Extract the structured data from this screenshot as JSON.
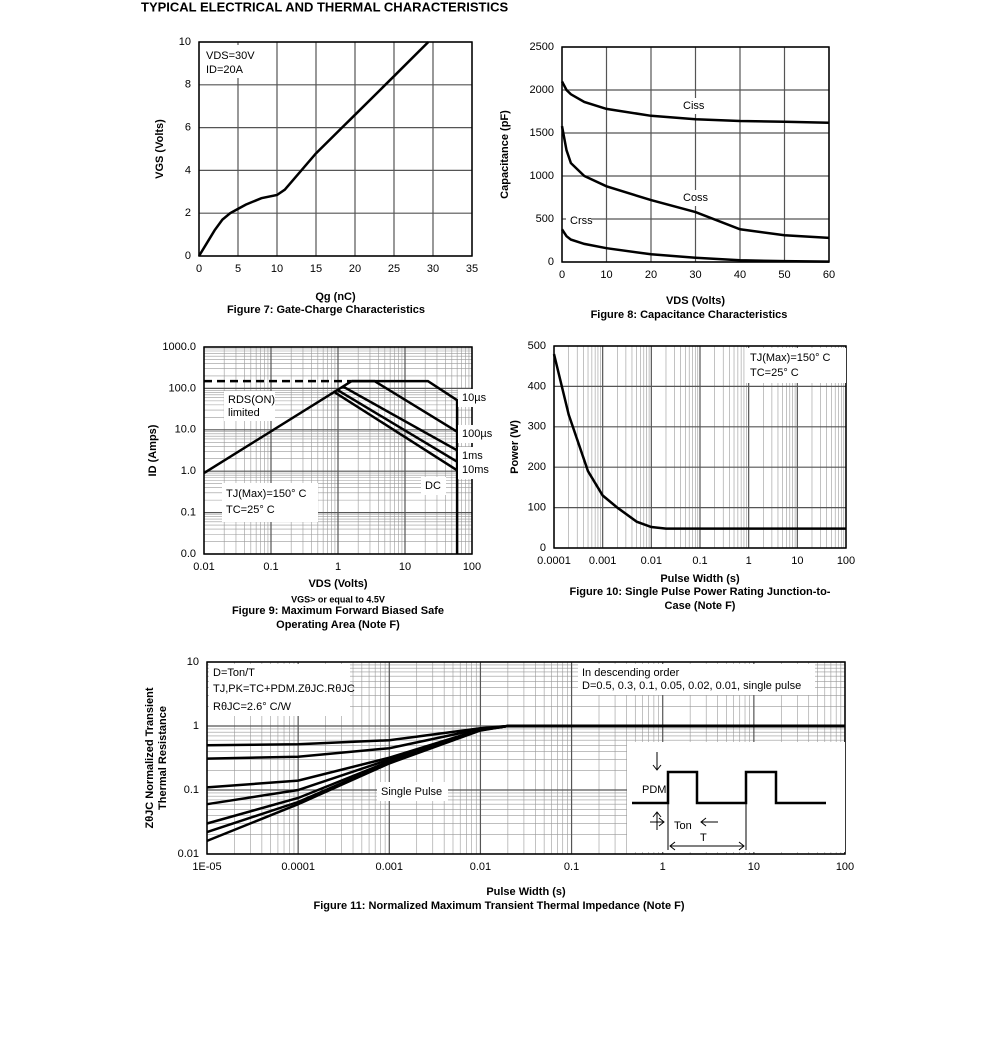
{
  "header": {
    "title": "TYPICAL ELECTRICAL AND THERMAL CHARACTERISTICS"
  },
  "chart_data": [
    {
      "type": "line",
      "caption": [
        "Figure 7: Gate-Charge Characteristics"
      ],
      "x_label": "Qg (nC)",
      "y_label": [
        "VGS (Volts)"
      ],
      "x": [
        0,
        1,
        2,
        3,
        4,
        5,
        6,
        8,
        10,
        11,
        15,
        20,
        25,
        29.4
      ],
      "series": [
        {
          "color": "#000000",
          "values": [
            0,
            0.6,
            1.2,
            1.7,
            2.0,
            2.2,
            2.4,
            2.7,
            2.85,
            3.1,
            4.8,
            6.6,
            8.4,
            10
          ]
        }
      ],
      "xlim": [
        0,
        35
      ],
      "xticks": [
        0,
        5,
        10,
        15,
        20,
        25,
        30,
        35
      ],
      "ylim": [
        0,
        10
      ],
      "yticks": [
        0,
        2,
        4,
        6,
        8,
        10
      ],
      "grid": true,
      "log_x": false,
      "log_y": false,
      "annotations": [
        "VDS=30V",
        "ID=20A"
      ]
    },
    {
      "type": "line",
      "caption": [
        "Figure 8: Capacitance Characteristics"
      ],
      "x_label": "VDS (Volts)",
      "y_label": [
        "Capacitance (pF)"
      ],
      "x": [
        0,
        1,
        2,
        5,
        10,
        20,
        30,
        40,
        50,
        60
      ],
      "series": [
        {
          "name": "Ciss",
          "color": "#000000",
          "values": [
            2100,
            2000,
            1950,
            1860,
            1780,
            1700,
            1660,
            1640,
            1630,
            1620
          ]
        },
        {
          "name": "Coss",
          "color": "#000000",
          "values": [
            1580,
            1300,
            1150,
            1000,
            880,
            720,
            580,
            380,
            310,
            280
          ]
        },
        {
          "name": "Crss",
          "color": "#000000",
          "values": [
            380,
            300,
            260,
            210,
            160,
            90,
            50,
            20,
            10,
            5
          ]
        }
      ],
      "xlim": [
        0,
        60
      ],
      "xticks": [
        0,
        10,
        20,
        30,
        40,
        50,
        60
      ],
      "ylim": [
        0,
        2500
      ],
      "yticks": [
        0,
        500,
        1000,
        1500,
        2000,
        2500
      ],
      "grid": true,
      "log_x": false,
      "log_y": false,
      "annotations": []
    },
    {
      "type": "line",
      "caption": [
        "Figure 9: Maximum Forward Biased Safe",
        "Operating Area (Note F)"
      ],
      "x_label": "VDS (Volts)",
      "y_label": [
        "ID (Amps)"
      ],
      "note": "VGS> or equal to 4.5V",
      "series": [
        {
          "color": "#000000",
          "x": [
            0.01,
            1.6
          ],
          "values": [
            0.9,
            150
          ]
        },
        {
          "color": "#000000",
          "dash": true,
          "x": [
            0.01,
            1.6
          ],
          "values": [
            150,
            150
          ]
        },
        {
          "name": "10µs",
          "color": "#000000",
          "x": [
            1.6,
            22,
            60,
            60
          ],
          "values": [
            150,
            150,
            52,
            0.01
          ]
        },
        {
          "name": "100µs",
          "color": "#000000",
          "x": [
            1.6,
            3.5,
            60
          ],
          "values": [
            150,
            150,
            9
          ]
        },
        {
          "name": "1ms",
          "color": "#000000",
          "x": [
            1.2,
            60
          ],
          "values": [
            110,
            3.2
          ]
        },
        {
          "name": "10ms",
          "color": "#000000",
          "x": [
            1.0,
            60
          ],
          "values": [
            90,
            1.7
          ]
        },
        {
          "name": "DC",
          "color": "#000000",
          "x": [
            0.9,
            60
          ],
          "values": [
            80,
            1.05
          ]
        }
      ],
      "xlim": [
        0.01,
        100
      ],
      "xticks": [
        0.01,
        0.1,
        1,
        10,
        100
      ],
      "ylim": [
        0.01,
        1000
      ],
      "yticks": [
        {
          "value": 0.01,
          "label": "0.0"
        },
        0.1,
        {
          "value": 1,
          "label": "1.0"
        },
        {
          "value": 10,
          "label": "10.0"
        },
        {
          "value": 100,
          "label": "100.0"
        },
        {
          "value": 1000,
          "label": "1000.0"
        }
      ],
      "grid": true,
      "log_x": true,
      "log_y": true,
      "annotations": [
        "RDS(ON)",
        "limited",
        "TJ(Max)=150° C",
        "TC=25° C"
      ]
    },
    {
      "type": "line",
      "caption": [
        "Figure 10: Single Pulse Power Rating Junction-to-",
        "Case (Note F)"
      ],
      "x_label": "Pulse Width (s)",
      "y_label": [
        "Power (W)"
      ],
      "x": [
        0.0001,
        0.0002,
        0.0005,
        0.001,
        0.002,
        0.005,
        0.01,
        0.02,
        0.05,
        0.1,
        1,
        10,
        100
      ],
      "series": [
        {
          "color": "#000000",
          "values": [
            480,
            330,
            190,
            130,
            100,
            65,
            52,
            48,
            48,
            48,
            48,
            48,
            48
          ]
        }
      ],
      "xlim": [
        0.0001,
        100
      ],
      "xticks": [
        0.0001,
        0.001,
        0.01,
        0.1,
        1,
        10,
        100
      ],
      "ylim": [
        0,
        500
      ],
      "yticks": [
        0,
        100,
        200,
        300,
        400,
        500
      ],
      "grid": true,
      "log_x": true,
      "log_y": false,
      "annotations": [
        "TJ(Max)=150° C",
        "TC=25° C"
      ]
    },
    {
      "type": "line",
      "caption": [
        "Figure 11: Normalized Maximum Transient Thermal Impedance (Note F)"
      ],
      "x_label": "Pulse Width (s)",
      "y_label": [
        "ZθJC Normalized Transient",
        "Thermal Resistance"
      ],
      "x": [
        1e-05,
        0.0001,
        0.001,
        0.01,
        0.02,
        0.1,
        1,
        10,
        100
      ],
      "series": [
        {
          "color": "#000000",
          "values": [
            0.5,
            0.52,
            0.6,
            0.92,
            1,
            1,
            1,
            1,
            1
          ]
        },
        {
          "color": "#000000",
          "values": [
            0.31,
            0.33,
            0.45,
            0.9,
            1,
            1,
            1,
            1,
            1
          ]
        },
        {
          "color": "#000000",
          "values": [
            0.11,
            0.14,
            0.32,
            0.88,
            1,
            1,
            1,
            1,
            1
          ]
        },
        {
          "color": "#000000",
          "values": [
            0.06,
            0.1,
            0.3,
            0.87,
            1,
            1,
            1,
            1,
            1
          ]
        },
        {
          "color": "#000000",
          "values": [
            0.03,
            0.075,
            0.28,
            0.86,
            1,
            1,
            1,
            1,
            1
          ]
        },
        {
          "color": "#000000",
          "values": [
            0.022,
            0.065,
            0.27,
            0.86,
            1,
            1,
            1,
            1,
            1
          ]
        },
        {
          "name": "Single Pulse",
          "color": "#000000",
          "values": [
            0.016,
            0.06,
            0.26,
            0.85,
            1,
            1,
            1,
            1,
            1
          ]
        }
      ],
      "xlim": [
        1e-05,
        100
      ],
      "xticks": [
        {
          "value": 1e-05,
          "label": "1E-05"
        },
        0.0001,
        0.001,
        0.01,
        0.1,
        1,
        10,
        100
      ],
      "ylim": [
        0.01,
        10
      ],
      "yticks": [
        0.01,
        0.1,
        1,
        10
      ],
      "grid": true,
      "log_x": true,
      "log_y": true,
      "annotations": [
        "D=Ton/T",
        "TJ,PK=TC+PDM.ZθJC.RθJC",
        "RθJC=2.6° C/W",
        "In descending order",
        "D=0.5, 0.3, 0.1, 0.05, 0.02, 0.01, single pulse",
        "PDM",
        "Ton",
        "T"
      ]
    }
  ]
}
